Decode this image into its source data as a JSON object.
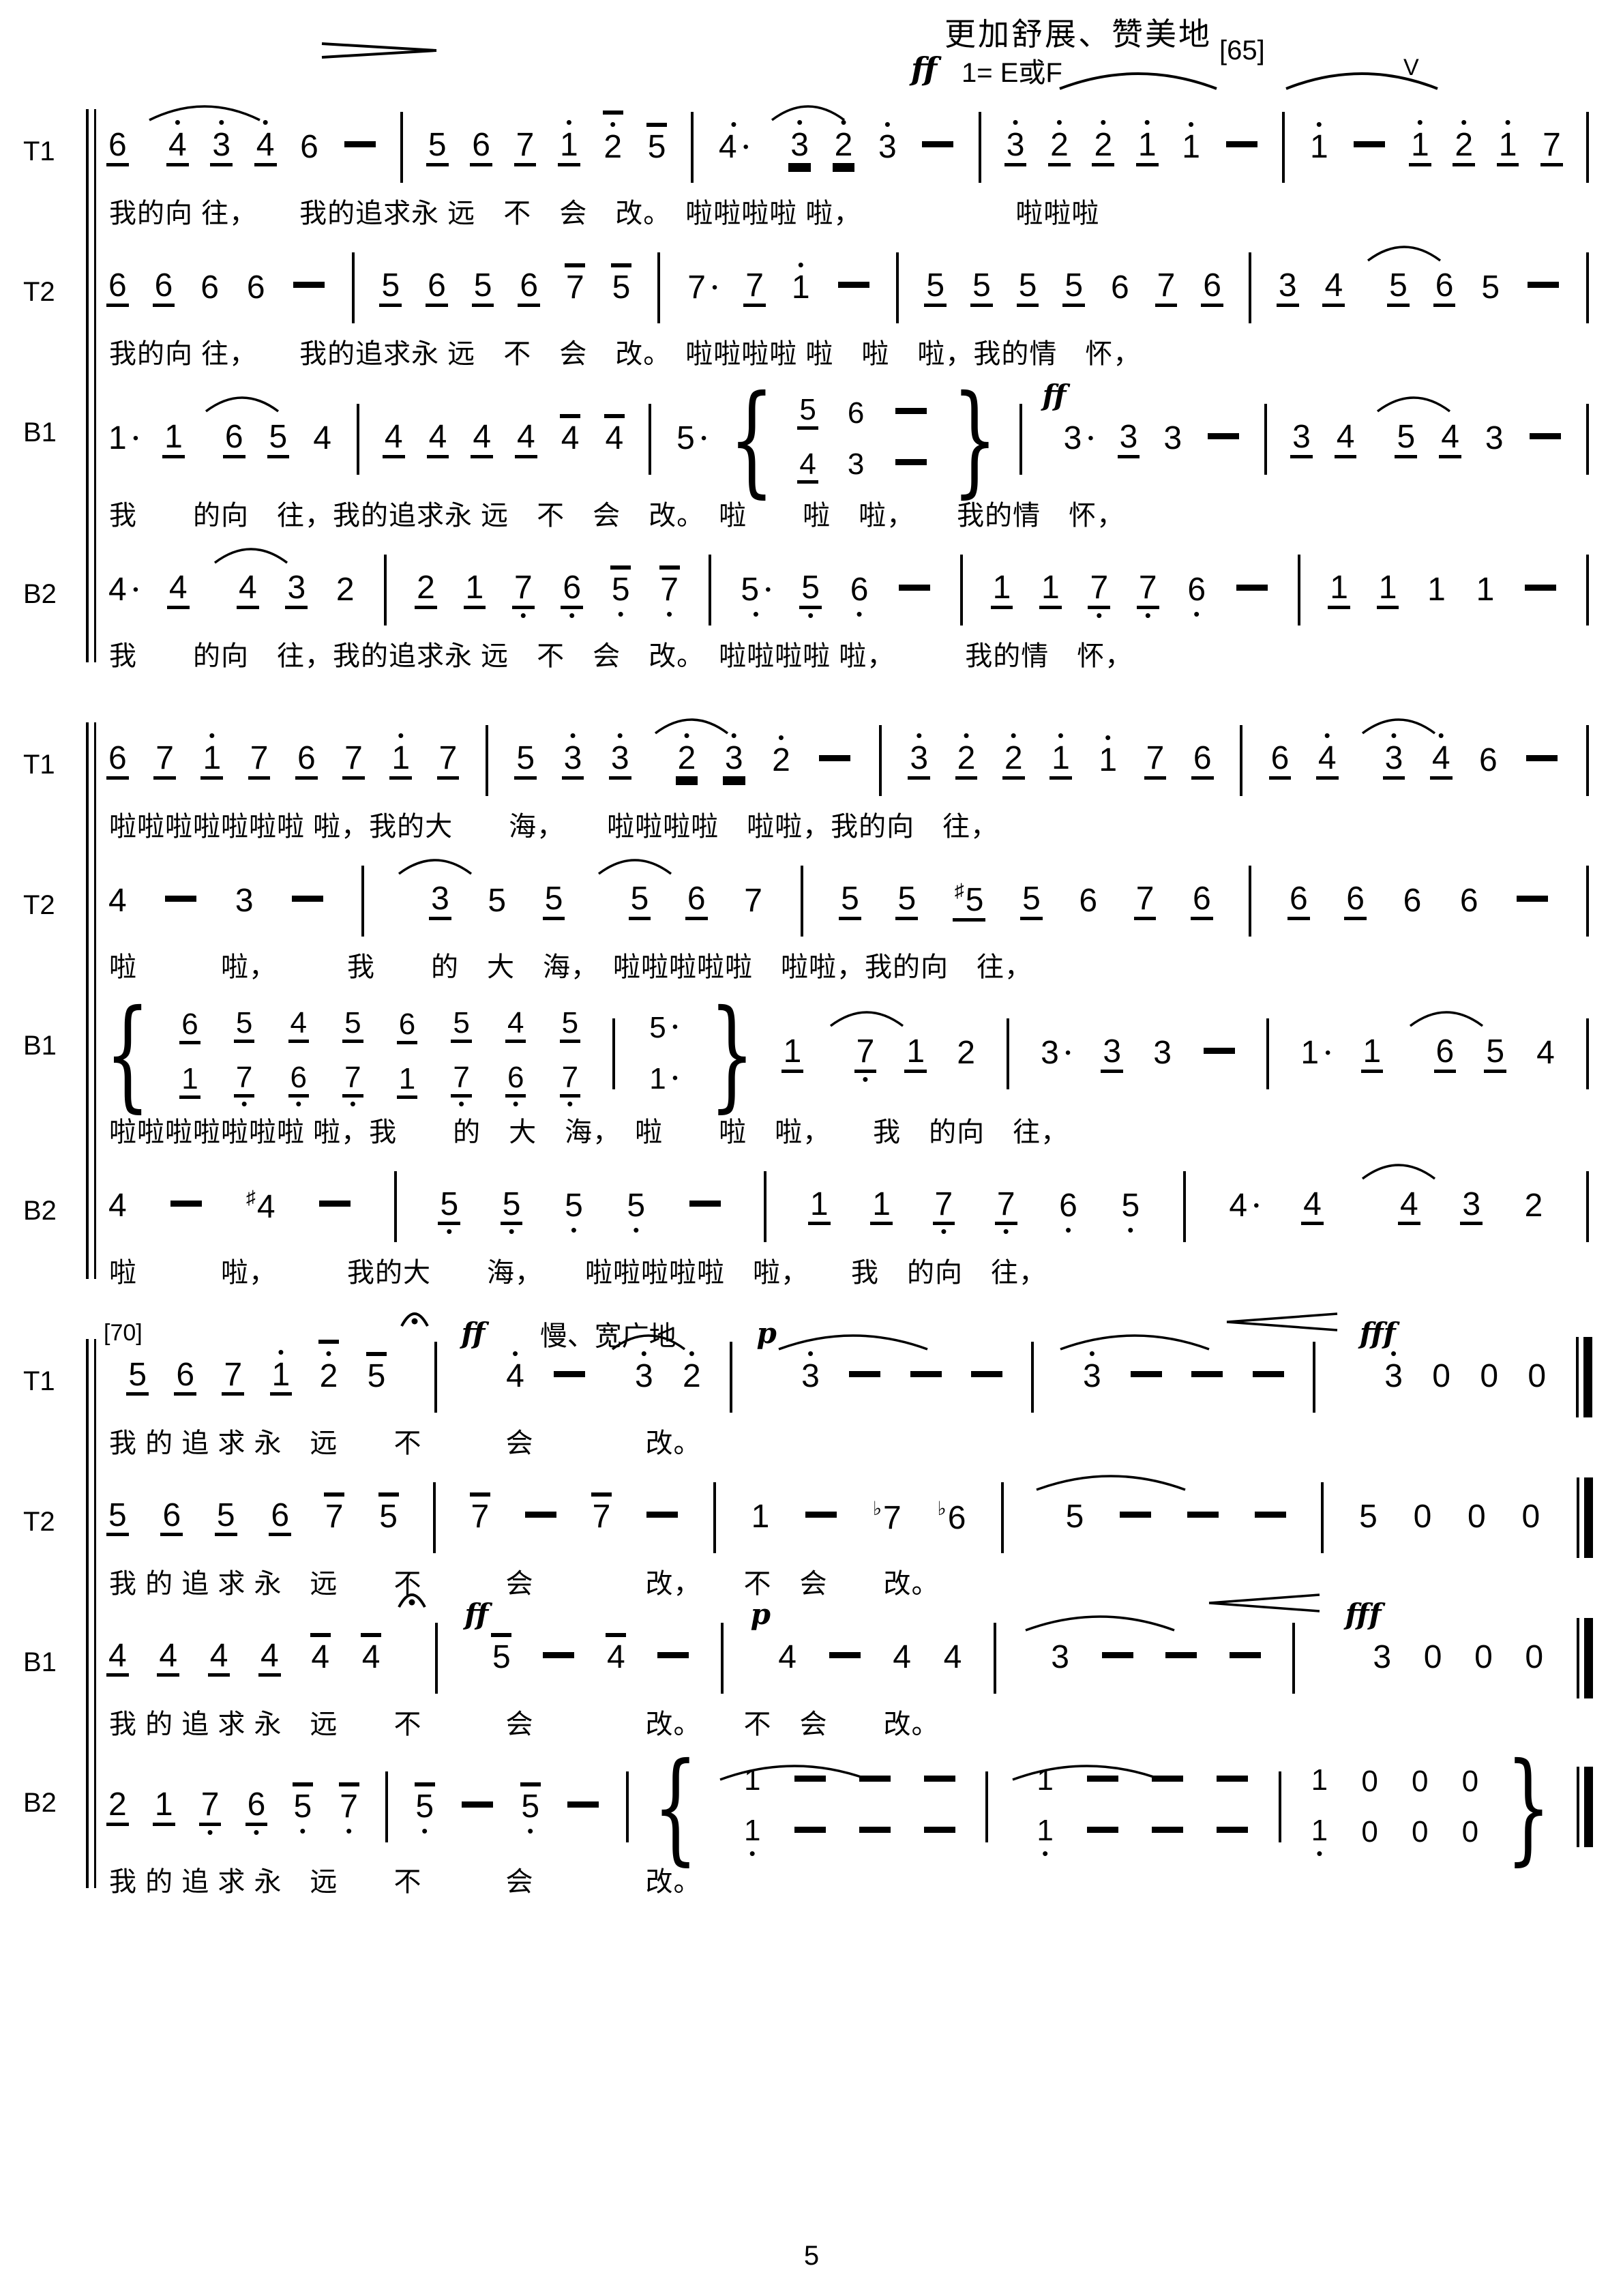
{
  "header": {
    "expression": "更加舒展、赞美地",
    "dynamic": "ff",
    "key": "1= E或F",
    "rehearsal": "[65]",
    "breath_mark": "V"
  },
  "page_number": "5",
  "systems": [
    {
      "staves": [
        {
          "part": "T1",
          "notes": "6_ arc:3 4'_ 3'_ 4'_ 6 - | 5_ 6_ 7_ 1'_ 2'~ 5~ | 4'. arc:2 3'= 2'= 3' - | 3'_ 2'_ 2'_ 1'_ 1' - | 1' - 1'_ 2'_ 1'_ 7_ |",
          "lyrics": "我的向 往，　　我的追求永 远　不　会　改。　啦啦啦啦 啦，　　　　　　啦啦啦"
        },
        {
          "part": "T2",
          "notes": "6_ 6_ 6 6 - | 5_ 6_ 5_ 6_ 7~ 5~ | 7. 7_ 1' - | 5_ 5_ 5_ 5_ 6 7_ 6_ | 3_ 4_ arc:2 5_ 6_ 5 - |",
          "lyrics": "我的向 往，　　我的追求永 远　不　会　改。　啦啦啦啦 啦　啦　啦，我的情　怀，"
        },
        {
          "part": "B1",
          "notes": "1. 1_ arc:2 6_ 5_ 4 | 4_ 4_ 4_ 4_ 4~ 4~ | 5. { st:5_/4_ st:6/3 st:-/- } | @ff 3. 3_ 3 - | 3_ 4_ arc:2 5_ 4_ 3 - |",
          "lyrics": "我　　的向　往，我的追求永 远　不　会　改。　啦　　啦　啦，　　我的情　怀，"
        },
        {
          "part": "B2",
          "notes": "4. 4_ arc:2 4_ 3_ 2 | 2_ 1_ 7,_ 6,_ 5,~ 7,~ | 5,. 5,_ 6, - | 1_ 1_ 7,_ 7,_ 6, - | 1_ 1_ 1 1 - |",
          "lyrics": "我　　的向　往，我的追求永 远　不　会　改。　啦啦啦啦 啦，　　　我的情　怀，"
        }
      ]
    },
    {
      "staves": [
        {
          "part": "T1",
          "notes": "6_ 7_ 1'_ 7_ 6_ 7_ 1'_ 7_ | 5_ 3'_ 3'_ arc:2 2'= 3'= 2' - | 3'_ 2'_ 2'_ 1'_ 1' 7_ 6_ | 6_ 4'_ arc:2 3'_ 4'_ 6 - |",
          "lyrics": "啦啦啦啦啦啦啦 啦，我的大　　海，　　啦啦啦啦　啦啦，我的向　往，"
        },
        {
          "part": "T2",
          "notes": "4 - 3 - | arc:2 3_ 5 5_ arc:2 5_ 6_ 7 | 5_ 5_ #5_ 5_ 6 7_ 6_ | 6_ 6_ 6 6 - |",
          "lyrics": "啦　　　啦，　　　我　　的　大　海，　啦啦啦啦啦　啦啦，我的向　往，"
        },
        {
          "part": "B1",
          "notes": "{ st:6_/1_ st:5_/7,_ st:4_/6,_ st:5_/7,_ st:6_/1_ st:5_/7,_ st:4_/6,_ st:5_/7,_ | st:5./1. } 1_ arc:2 7,_ 1_ 2 | 3. 3_ 3 - | 1. 1_ arc:2 6_ 5_ 4 |",
          "lyrics": "啦啦啦啦啦啦啦 啦，我　　的　大　海，　啦　　啦　啦，　　我　的向　往，"
        },
        {
          "part": "B2",
          "notes": "4 - #4 - | 5,_ 5,_ 5, 5, - | 1_ 1_ 7,_ 7,_ 6, 5, | 4. 4_ arc:2 4_ 3_ 2 |",
          "lyrics": "啦　　　啦，　　　我的大　　海，　　啦啦啦啦啦　啦，　　我　的向　往，"
        }
      ]
    },
    {
      "staves": [
        {
          "part": "T1",
          "notes": "@[70] 5_ 6_ 7_ 1'_ 2'~ 5~ ferm | @ff @慢、宽广地 4' - arc:2 3' 2' | @p arc:4 3' - - - | arc:4 3' - - - | cresc:170 @fff 3' 0 0 0 ||",
          "lyrics": "我 的 追 求 永　远　　不　　　会　　　　改。"
        },
        {
          "part": "T2",
          "notes": "5_ 6_ 5_ 6_ 7~ 5~ | 7~ - 7~ - | 1 - b7 b6 | arc:4 5 - - - | 5 0 0 0 ||",
          "lyrics": "我 的 追 求 永　远　　不　　　会　　　　改，　　不　会　　改。"
        },
        {
          "part": "B1",
          "notes": "4_ 4_ 4_ 4_ 4~ 4~ ferm | @ff 5~ - 4~ - | @p 4 - 4 4 | arc:4 3 - - - | cresc:170 @fff 3 0 0 0 ||",
          "lyrics": "我 的 追 求 永　远　　不　　　会　　　　改。　　不　会　　改。"
        },
        {
          "part": "B2",
          "notes": "2_ 1_ 7,_ 6,_ 5,~ 7,~ | 5,~ - 5,~ - | { arc:4 st:1/1, st:-/- st:-/- st:-/- | arc:4 st:1/1, st:-/- st:-/- st:-/- | st:1/1, st:0/0 st:0/0 st:0/0 } ||",
          "lyrics": "我 的 追 求 永　远　　不　　　会　　　　改。"
        }
      ]
    }
  ]
}
